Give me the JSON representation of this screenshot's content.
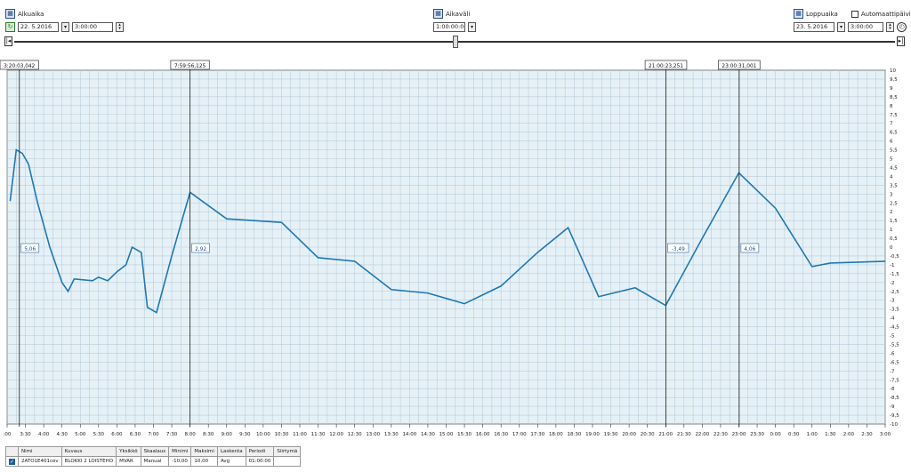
{
  "controls": {
    "start": {
      "label": "Alkuaika",
      "date": "22. 5.2016",
      "time": "3:00:00"
    },
    "interval": {
      "label": "Aikaväli",
      "value": "1:00:00:00"
    },
    "end": {
      "label": "Loppuaika",
      "date": "23. 5.2016",
      "time": "3:00:00",
      "auto_label": "Automaattipäivitys"
    }
  },
  "cursors": [
    "3:20:03,042",
    "7:59:56,125",
    "21:00:23,251",
    "23:00:31,001"
  ],
  "cursor_values": [
    "5,06",
    "2,92",
    "-3,49",
    "4,06"
  ],
  "chart_data": {
    "type": "line",
    "title": "",
    "xlabel": "",
    "ylabel": "",
    "grid": true,
    "x_ticks": [
      ":00",
      "3:30",
      "4:00",
      "4:30",
      "5:00",
      "5:30",
      "6:00",
      "6:30",
      "7:00",
      "7:30",
      "8:00",
      "8:30",
      "9:00",
      "9:30",
      "10:00",
      "10:30",
      "11:00",
      "11:30",
      "12:00",
      "12:30",
      "13:00",
      "13:30",
      "14:00",
      "14:30",
      "15:00",
      "15:30",
      "16:00",
      "16:30",
      "17:00",
      "17:30",
      "18:00",
      "18:30",
      "19:00",
      "19:30",
      "20:00",
      "20:30",
      "21:00",
      "21:30",
      "22:00",
      "22:30",
      "23:00",
      "23:30",
      "0:00",
      "0:30",
      "1:00",
      "1:30",
      "2:00",
      "2:30",
      "3:00"
    ],
    "y_ticks": [
      "10",
      "9,5",
      "9",
      "8,5",
      "8",
      "7,5",
      "7",
      "6,5",
      "6",
      "5,5",
      "5",
      "4,5",
      "4",
      "3,5",
      "3",
      "2,5",
      "2",
      "1,5",
      "1",
      "0,5",
      "0",
      "-0,5",
      "-1",
      "-1,5",
      "-2",
      "-2,5",
      "-3",
      "-3,5",
      "-4",
      "-4,5",
      "-5",
      "-5,5",
      "-6",
      "-6,5",
      "-7",
      "-7,5",
      "-8",
      "-8,5",
      "-9",
      "-9,5",
      "-10"
    ],
    "ylim": [
      -10,
      10
    ],
    "xlim": [
      "3:00",
      "3:00 (+1)"
    ],
    "series": [
      {
        "color": "#1f77b4",
        "points": [
          [
            "3:05",
            2.6
          ],
          [
            "3:15",
            5.5
          ],
          [
            "3:25",
            5.3
          ],
          [
            "3:35",
            4.7
          ],
          [
            "3:50",
            2.5
          ],
          [
            "4:10",
            0.0
          ],
          [
            "4:30",
            -2.0
          ],
          [
            "4:40",
            -2.5
          ],
          [
            "4:50",
            -1.8
          ],
          [
            "5:20",
            -1.9
          ],
          [
            "5:30",
            -1.7
          ],
          [
            "5:45",
            -1.9
          ],
          [
            "6:00",
            -1.4
          ],
          [
            "6:15",
            -1.0
          ],
          [
            "6:25",
            0.0
          ],
          [
            "6:40",
            -0.3
          ],
          [
            "6:50",
            -3.4
          ],
          [
            "7:05",
            -3.7
          ],
          [
            "7:30",
            -0.5
          ],
          [
            "8:00",
            3.1
          ],
          [
            "9:00",
            1.6
          ],
          [
            "10:30",
            1.4
          ],
          [
            "11:30",
            -0.6
          ],
          [
            "12:30",
            -0.8
          ],
          [
            "13:30",
            -2.4
          ],
          [
            "14:30",
            -2.6
          ],
          [
            "15:30",
            -3.2
          ],
          [
            "16:30",
            -2.2
          ],
          [
            "17:30",
            -0.3
          ],
          [
            "18:20",
            1.1
          ],
          [
            "19:10",
            -2.8
          ],
          [
            "20:10",
            -2.3
          ],
          [
            "21:00",
            -3.3
          ],
          [
            "22:00",
            0.5
          ],
          [
            "23:00",
            4.2
          ],
          [
            "24:00",
            2.2
          ],
          [
            "25:00",
            -1.1
          ],
          [
            "25:30",
            -0.9
          ],
          [
            "27:00",
            -0.8
          ]
        ]
      }
    ]
  },
  "legend_table": {
    "headers": [
      "Nimi",
      "Kuvaus",
      "Yksikkö",
      "Skaalaus",
      "Minimi",
      "Maksimi",
      "Laskenta",
      "Periodi",
      "Siirtymä"
    ],
    "row": [
      "2ATO1E401cev",
      "BLOKKI 2 LOISTEHO",
      "MVAR",
      "Manual",
      "-10,00",
      "10,00",
      "Avg",
      "01:00:00",
      ""
    ]
  }
}
